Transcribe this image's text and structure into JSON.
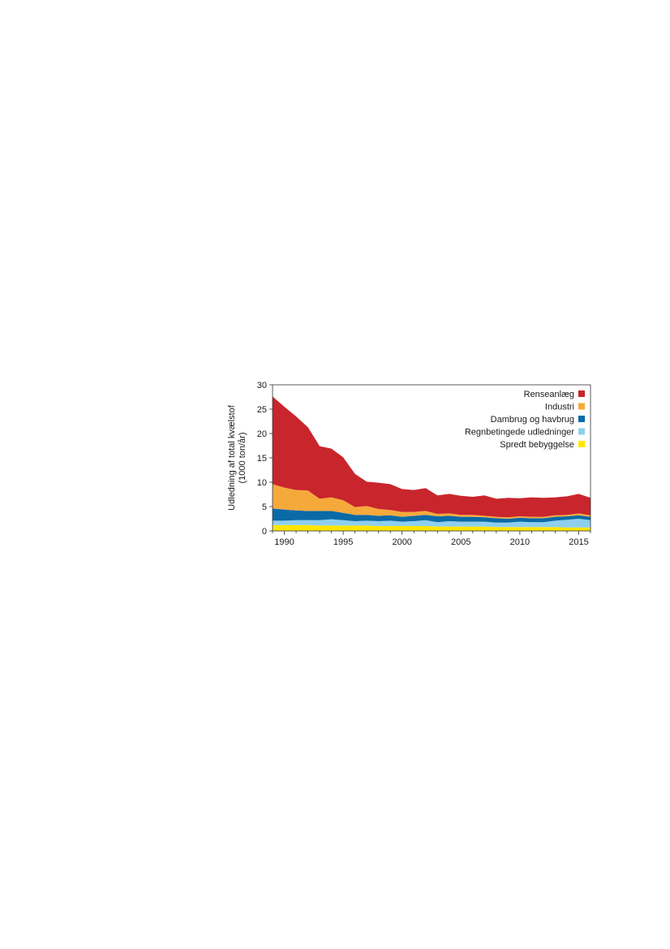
{
  "chart_data": {
    "type": "area",
    "stacked": true,
    "ylabel_line1": "Udledning af total kvælstof",
    "ylabel_line2": "(1000 ton/år)",
    "xlim": [
      1989,
      2016
    ],
    "ylim": [
      0,
      30
    ],
    "yticks": [
      0,
      5,
      10,
      15,
      20,
      25,
      30
    ],
    "xticks": [
      1990,
      1995,
      2000,
      2005,
      2010,
      2015
    ],
    "grid": false,
    "legend_position": "top-right",
    "x": [
      1989,
      1990,
      1991,
      1992,
      1993,
      1994,
      1995,
      1996,
      1997,
      1998,
      1999,
      2000,
      2001,
      2002,
      2003,
      2004,
      2005,
      2006,
      2007,
      2008,
      2009,
      2010,
      2011,
      2012,
      2013,
      2014,
      2015,
      2016
    ],
    "series": [
      {
        "name": "Spredt bebyggelse",
        "color": "#ffe600",
        "values": [
          1.2,
          1.2,
          1.2,
          1.2,
          1.1,
          1.1,
          1.1,
          1.1,
          1.1,
          1.0,
          1.0,
          1.0,
          1.0,
          1.0,
          0.9,
          0.9,
          0.9,
          0.9,
          0.9,
          0.8,
          0.8,
          0.8,
          0.8,
          0.8,
          0.8,
          0.7,
          0.7,
          0.7
        ]
      },
      {
        "name": "Regnbetingede udledninger",
        "color": "#8ecfee",
        "values": [
          0.9,
          0.9,
          1.0,
          1.0,
          1.1,
          1.3,
          1.1,
          0.9,
          1.0,
          1.0,
          1.1,
          0.9,
          1.0,
          1.2,
          0.9,
          1.1,
          1.0,
          1.0,
          1.0,
          0.9,
          0.9,
          1.1,
          1.0,
          1.0,
          1.3,
          1.6,
          1.8,
          1.5
        ]
      },
      {
        "name": "Dambrug og havbrug",
        "color": "#0a6aa6",
        "values": [
          2.5,
          2.3,
          2.0,
          1.9,
          1.9,
          1.7,
          1.5,
          1.3,
          1.2,
          1.1,
          1.1,
          1.0,
          1.1,
          1.1,
          1.2,
          1.1,
          1.0,
          1.0,
          0.9,
          0.9,
          0.8,
          0.8,
          0.8,
          0.8,
          0.8,
          0.7,
          0.7,
          0.7
        ]
      },
      {
        "name": "Industri",
        "color": "#f6a93b",
        "values": [
          5.0,
          4.5,
          4.2,
          4.2,
          2.5,
          2.8,
          2.6,
          1.6,
          1.8,
          1.4,
          1.1,
          1.0,
          0.8,
          0.8,
          0.5,
          0.5,
          0.4,
          0.4,
          0.3,
          0.3,
          0.3,
          0.3,
          0.3,
          0.3,
          0.3,
          0.3,
          0.4,
          0.3
        ]
      },
      {
        "name": "Renseanlæg",
        "color": "#c9252c",
        "values": [
          18.0,
          16.6,
          15.1,
          13.0,
          10.8,
          10.0,
          8.8,
          6.8,
          5.0,
          5.4,
          5.3,
          4.7,
          4.5,
          4.7,
          3.8,
          4.0,
          3.9,
          3.7,
          4.2,
          3.7,
          4.0,
          3.7,
          4.0,
          3.9,
          3.7,
          3.8,
          4.0,
          3.6
        ]
      }
    ]
  }
}
